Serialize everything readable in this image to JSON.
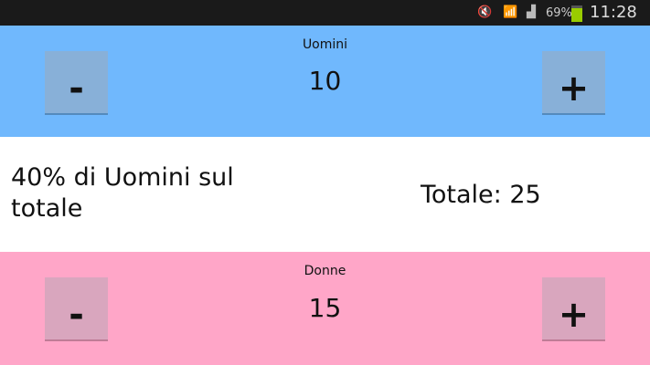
{
  "status_bar": {
    "icons": [
      "mute-icon",
      "wifi-icon",
      "signal-icon",
      "battery-icon"
    ],
    "battery": "69%",
    "time": "11:28"
  },
  "men": {
    "label": "Uomini",
    "value": "10",
    "minus": "-",
    "plus": "+",
    "color": "#70b8fd"
  },
  "summary": {
    "percent_text": "40% di Uomini sul totale",
    "total_text": "Totale: 25"
  },
  "women": {
    "label": "Donne",
    "value": "15",
    "minus": "-",
    "plus": "+",
    "color": "#ffa6c8"
  }
}
